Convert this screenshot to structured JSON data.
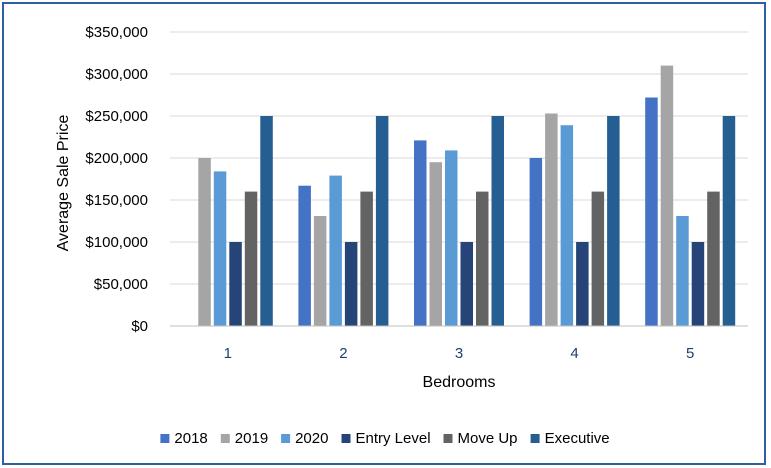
{
  "chart_data": {
    "type": "bar",
    "title": "",
    "xlabel": "Bedrooms",
    "ylabel": "Average Sale Price",
    "categories": [
      "1",
      "2",
      "3",
      "4",
      "5"
    ],
    "ylim": [
      0,
      350000
    ],
    "yticks": [
      0,
      50000,
      100000,
      150000,
      200000,
      250000,
      300000,
      350000
    ],
    "ytick_labels": [
      "$0",
      "$50,000",
      "$100,000",
      "$150,000",
      "$200,000",
      "$250,000",
      "$300,000",
      "$350,000"
    ],
    "grid": true,
    "legend_position": "bottom",
    "series": [
      {
        "name": "2018",
        "color": "#4472c4",
        "values": [
          0,
          167000,
          221000,
          200000,
          272000
        ]
      },
      {
        "name": "2019",
        "color": "#a5a5a5",
        "values": [
          200000,
          131000,
          195000,
          253000,
          310000
        ]
      },
      {
        "name": "2020",
        "color": "#5b9bd5",
        "values": [
          184000,
          179000,
          209000,
          239000,
          131000
        ]
      },
      {
        "name": "Entry Level",
        "color": "#264478",
        "values": [
          100000,
          100000,
          100000,
          100000,
          100000
        ]
      },
      {
        "name": "Move Up",
        "color": "#636363",
        "values": [
          160000,
          160000,
          160000,
          160000,
          160000
        ]
      },
      {
        "name": "Executive",
        "color": "#255e91",
        "values": [
          250000,
          250000,
          250000,
          250000,
          250000
        ]
      }
    ]
  }
}
